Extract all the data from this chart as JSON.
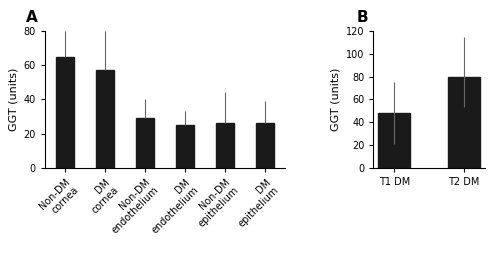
{
  "panel_A": {
    "categories": [
      "Non-DM\ncornea",
      "DM\ncornea",
      "Non-DM\nendothelium",
      "DM\nendothelium",
      "Non-DM\nepithelium",
      "DM\nepithelium"
    ],
    "values": [
      65,
      57,
      29,
      25,
      26,
      26
    ],
    "errors_upper": [
      15,
      23,
      11,
      8,
      18,
      13
    ],
    "errors_lower": [
      0,
      0,
      0,
      0,
      0,
      0
    ],
    "ylabel": "GGT (units)",
    "ylim": [
      0,
      80
    ],
    "yticks": [
      0,
      20,
      40,
      60,
      80
    ],
    "panel_label": "A"
  },
  "panel_B": {
    "categories": [
      "T1 DM",
      "T2 DM"
    ],
    "values": [
      48,
      80
    ],
    "errors_upper": [
      27,
      35
    ],
    "errors_lower": [
      27,
      27
    ],
    "ylabel": "GGT (units)",
    "ylim": [
      0,
      120
    ],
    "yticks": [
      0,
      20,
      40,
      60,
      80,
      100,
      120
    ],
    "panel_label": "B"
  },
  "bar_color": "#1a1a1a",
  "bar_width": 0.45,
  "background_color": "#ffffff",
  "tick_labelsize": 7,
  "ylabel_fontsize": 8,
  "panel_label_fontsize": 11
}
